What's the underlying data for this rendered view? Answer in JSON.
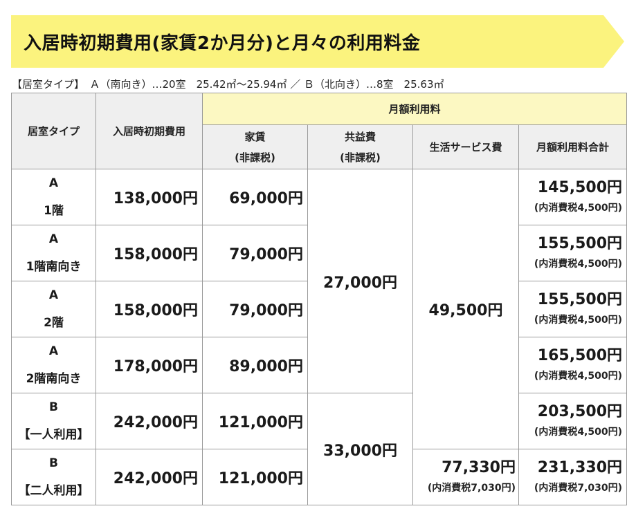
{
  "banner": {
    "title": "入居時初期費用(家賃2か月分)と月々の利用料金",
    "color": "#fbf37e"
  },
  "room_info": "【居室タイプ】　Ａ（南向き）…20室　25.42㎡～25.94㎡ ／ Ｂ（北向き）…8室　25.63㎡",
  "table": {
    "headers": {
      "room_type": "居室タイプ",
      "initial_cost": "入居時初期費用",
      "monthly_group": "月額利用料",
      "rent_1": "家賃",
      "rent_2": "(非課税)",
      "common_1": "共益費",
      "common_2": "(非課税)",
      "service": "生活サービス費",
      "total": "月額利用料合計"
    },
    "rows": [
      {
        "type_1": "A",
        "type_2": "1階",
        "initial": "138,000円",
        "rent": "69,000円",
        "total": "145,500円",
        "tax": "(内消費税4,500円)"
      },
      {
        "type_1": "A",
        "type_2": "1階南向き",
        "initial": "158,000円",
        "rent": "79,000円",
        "total": "155,500円",
        "tax": "(内消費税4,500円)"
      },
      {
        "type_1": "A",
        "type_2": "2階",
        "initial": "158,000円",
        "rent": "79,000円",
        "total": "155,500円",
        "tax": "(内消費税4,500円)"
      },
      {
        "type_1": "A",
        "type_2": "2階南向き",
        "initial": "178,000円",
        "rent": "89,000円",
        "total": "165,500円",
        "tax": "(内消費税4,500円)"
      },
      {
        "type_1": "B",
        "type_2": "【一人利用】",
        "initial": "242,000円",
        "rent": "121,000円",
        "total": "203,500円",
        "tax": "(内消費税4,500円)"
      },
      {
        "type_1": "B",
        "type_2": "【二人利用】",
        "initial": "242,000円",
        "rent": "121,000円",
        "total": "231,330円",
        "tax": "(内消費税7,030円)"
      }
    ],
    "common_fee_a": "27,000円",
    "common_fee_b": "33,000円",
    "service_fee_main": "49,500円",
    "service_fee_b2": "77,330円",
    "service_fee_b2_tax": "(内消費税7,030円)"
  }
}
